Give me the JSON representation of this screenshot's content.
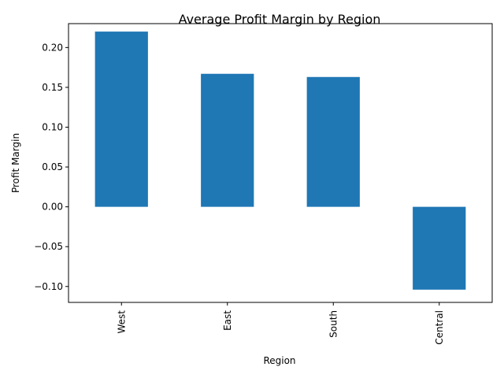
{
  "chart_data": {
    "type": "bar",
    "title": "Average Profit Margin by Region",
    "xlabel": "Region",
    "ylabel": "Profit Margin",
    "categories": [
      "West",
      "East",
      "South",
      "Central"
    ],
    "values": [
      0.22,
      0.167,
      0.163,
      -0.104
    ],
    "ylim": [
      -0.12,
      0.23
    ],
    "yticks": [
      {
        "value": -0.1,
        "label": "−0.10"
      },
      {
        "value": -0.05,
        "label": "−0.05"
      },
      {
        "value": 0.0,
        "label": "0.00"
      },
      {
        "value": 0.05,
        "label": "0.05"
      },
      {
        "value": 0.1,
        "label": "0.10"
      },
      {
        "value": 0.15,
        "label": "0.15"
      },
      {
        "value": 0.2,
        "label": "0.20"
      }
    ],
    "bar_color": "#1f77b4",
    "grid": false,
    "legend": "none"
  }
}
